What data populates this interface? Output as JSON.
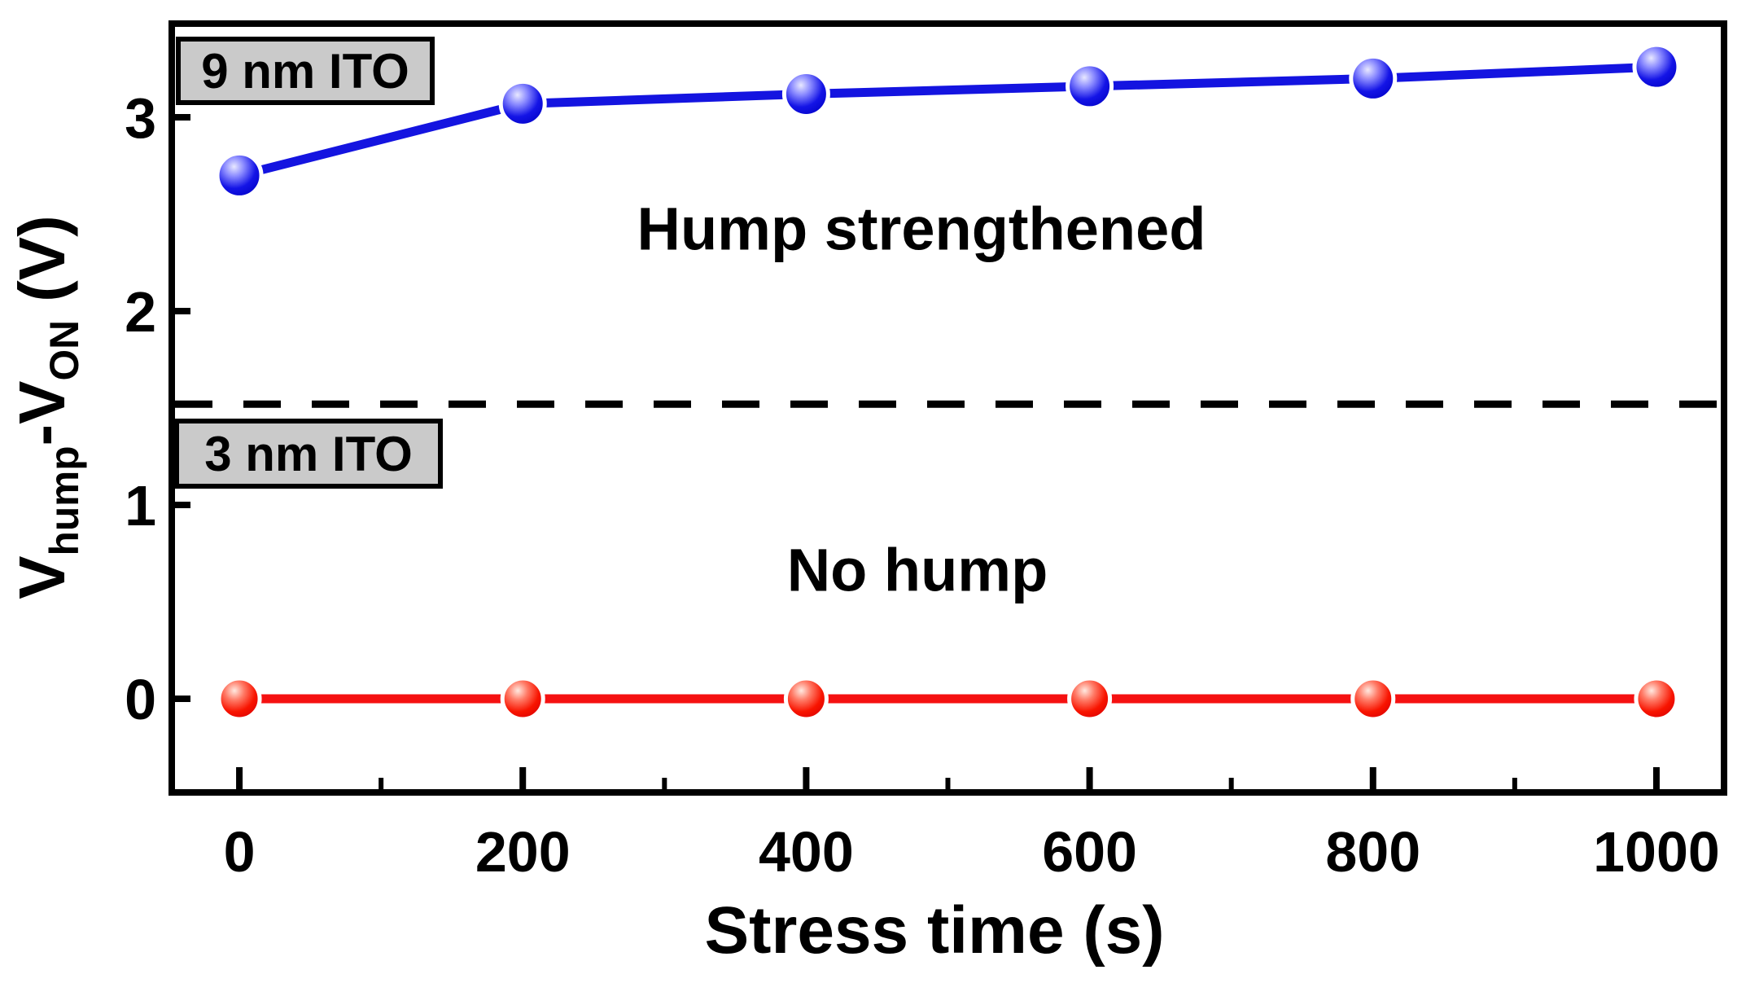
{
  "chart_data": {
    "type": "line",
    "x": [
      0,
      200,
      400,
      600,
      800,
      1000
    ],
    "series": [
      {
        "id": "9nm-ito",
        "name": "9 nm ITO",
        "color": "#1414e0",
        "values": [
          2.7,
          3.07,
          3.12,
          3.16,
          3.2,
          3.26
        ],
        "annotation": "Hump strengthened",
        "marker_radius": 27,
        "marker_gradient": [
          {
            "o": "0%",
            "c": "#e8e8ff"
          },
          {
            "o": "28%",
            "c": "#8a8aff"
          },
          {
            "o": "62%",
            "c": "#1414e6"
          },
          {
            "o": "100%",
            "c": "#0000c4"
          }
        ]
      },
      {
        "id": "3nm-ito",
        "name": "3 nm ITO",
        "color": "#f51111",
        "values": [
          0,
          0,
          0,
          0,
          0,
          0
        ],
        "annotation": "No hump",
        "marker_radius": 25,
        "marker_gradient": [
          {
            "o": "0%",
            "c": "#ffe9e0"
          },
          {
            "o": "30%",
            "c": "#ff7a66"
          },
          {
            "o": "65%",
            "c": "#f81400"
          },
          {
            "o": "100%",
            "c": "#d80000"
          }
        ]
      }
    ],
    "dashed_threshold_y": 1.52,
    "title": "",
    "xlabel": "Stress time (s)",
    "ylabel": "V_hump-V_ON (V)",
    "ylabel_rich": [
      {
        "t": "V"
      },
      {
        "t": "hump"
      },
      {
        "t": "-V"
      },
      {
        "t": "ON"
      },
      {
        "t": " (V)"
      }
    ],
    "xlim": [
      -50,
      1050
    ],
    "ylim": [
      -0.5,
      3.5
    ],
    "x_ticks": [
      0,
      200,
      400,
      600,
      800,
      1000
    ],
    "x_minor_ticks": [
      100,
      300,
      500,
      700,
      900
    ],
    "y_ticks": [
      0,
      1,
      2,
      3
    ],
    "grid": false,
    "legend_position": "inside-left",
    "legend_boxes": [
      {
        "label": "9 nm ITO"
      },
      {
        "label": "3 nm ITO"
      }
    ],
    "colors": {
      "blue_series": "#1414e0",
      "red_series": "#f51111",
      "legend_bg": "#cacaca",
      "frame": "#000000",
      "threshold_line": "#000000"
    }
  }
}
